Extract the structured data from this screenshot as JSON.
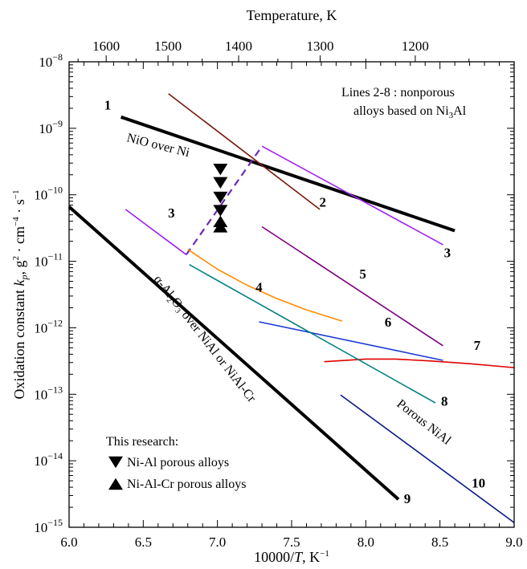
{
  "chart_data": {
    "type": "line",
    "xlabel": "10000/T, K⁻¹",
    "ylabel": "Oxidation constant k_p, g²·cm⁻⁴·s⁻¹",
    "top_axis_label": "Temperature, K",
    "xlim": [
      6.0,
      9.0
    ],
    "ylim_log10": [
      -15,
      -8
    ],
    "y_scale": "log",
    "x_ticks": [
      "6.0",
      "6.5",
      "7.0",
      "7.5",
      "8.0",
      "8.5",
      "9.0"
    ],
    "y_tick_exponents": [
      -15,
      -14,
      -13,
      -12,
      -11,
      -10,
      -9,
      -8
    ],
    "top_ticks": [
      {
        "T": 1600,
        "label": "1600"
      },
      {
        "T": 1500,
        "label": "1500"
      },
      {
        "T": 1400,
        "label": "1400"
      },
      {
        "T": 1300,
        "label": "1300"
      },
      {
        "T": 1200,
        "label": "1200"
      }
    ],
    "series": [
      {
        "id": "1",
        "color": "#000000",
        "width": 4,
        "points": [
          [
            6.35,
            -8.83
          ],
          [
            8.6,
            -10.54
          ]
        ]
      },
      {
        "id": "2",
        "color": "#7a1a0c",
        "width": 1.6,
        "points": [
          [
            6.67,
            -8.48
          ],
          [
            7.69,
            -10.22
          ]
        ]
      },
      {
        "id": "3",
        "color": "#a020f0",
        "width": 1.6,
        "points": [
          [
            6.38,
            -10.22
          ],
          [
            6.79,
            -10.9
          ]
        ]
      },
      {
        "id": "3-dashed",
        "color": "#6a2bb5",
        "width": 2.2,
        "dash": true,
        "points": [
          [
            6.79,
            -10.9
          ],
          [
            7.3,
            -9.27
          ]
        ]
      },
      {
        "id": "3-upper",
        "color": "#a020f0",
        "width": 1.6,
        "points": [
          [
            7.3,
            -9.27
          ],
          [
            8.52,
            -10.75
          ]
        ]
      },
      {
        "id": "4",
        "color": "#ff8c00",
        "width": 1.6,
        "points": [
          [
            6.8,
            -10.82
          ],
          [
            7.0,
            -11.12
          ],
          [
            7.2,
            -11.36
          ],
          [
            7.4,
            -11.56
          ],
          [
            7.6,
            -11.73
          ],
          [
            7.84,
            -11.9
          ]
        ]
      },
      {
        "id": "5",
        "color": "#800080",
        "width": 1.6,
        "points": [
          [
            7.3,
            -10.48
          ],
          [
            8.52,
            -12.27
          ]
        ]
      },
      {
        "id": "6",
        "color": "#1a3ad6",
        "width": 1.6,
        "points": [
          [
            7.28,
            -11.91
          ],
          [
            8.52,
            -12.49
          ]
        ]
      },
      {
        "id": "7",
        "color": "#e00000",
        "width": 1.6,
        "points": [
          [
            7.72,
            -12.51
          ],
          [
            8.0,
            -12.47
          ],
          [
            8.2,
            -12.47
          ],
          [
            8.45,
            -12.5
          ],
          [
            8.7,
            -12.54
          ],
          [
            9.0,
            -12.6
          ]
        ]
      },
      {
        "id": "8",
        "color": "#008080",
        "width": 1.6,
        "points": [
          [
            6.81,
            -11.05
          ],
          [
            8.47,
            -13.13
          ]
        ]
      },
      {
        "id": "9",
        "color": "#000000",
        "width": 4,
        "points": [
          [
            6.0,
            -10.18
          ],
          [
            8.22,
            -14.58
          ]
        ]
      },
      {
        "id": "10",
        "color": "#0a1a8a",
        "width": 1.6,
        "points": [
          [
            7.83,
            -13.01
          ],
          [
            9.0,
            -14.93
          ]
        ]
      }
    ],
    "markers": [
      {
        "type": "down",
        "x": 7.02,
        "y": -9.62
      },
      {
        "type": "down",
        "x": 7.02,
        "y": -9.82
      },
      {
        "type": "down",
        "x": 7.02,
        "y": -10.04
      },
      {
        "type": "down",
        "x": 7.02,
        "y": -10.24
      },
      {
        "type": "up",
        "x": 7.02,
        "y": -10.4
      },
      {
        "type": "up",
        "x": 7.02,
        "y": -10.48
      }
    ],
    "line_labels": [
      {
        "text": "1",
        "x": 6.26,
        "y": -8.72
      },
      {
        "text": "2",
        "x": 7.71,
        "y": -10.18
      },
      {
        "text": "3",
        "x": 6.69,
        "y": -10.34
      },
      {
        "text": "3",
        "x": 8.55,
        "y": -10.94
      },
      {
        "text": "4",
        "x": 7.28,
        "y": -11.46
      },
      {
        "text": "5",
        "x": 7.98,
        "y": -11.26
      },
      {
        "text": "6",
        "x": 8.15,
        "y": -11.98
      },
      {
        "text": "7",
        "x": 8.75,
        "y": -12.33
      },
      {
        "text": "8",
        "x": 8.53,
        "y": -13.17
      },
      {
        "text": "9",
        "x": 8.28,
        "y": -14.64
      },
      {
        "text": "10",
        "x": 8.76,
        "y": -14.4
      }
    ],
    "annotations": {
      "lines_note_1": "Lines 2-8 : nonporous",
      "lines_note_2_pre": "alloys based on Ni",
      "lines_note_2_sub": "3",
      "lines_note_2_post": "Al",
      "nio_label": "NiO over Ni",
      "alumina_label": "α-Al₂O₃ over NiAl or NiAl-Cr",
      "porous_label": "Porous NiAl"
    },
    "legend": {
      "title": "This research:",
      "items": [
        {
          "marker": "down",
          "label": "Ni-Al porous alloys"
        },
        {
          "marker": "up",
          "label": "Ni-Al-Cr porous alloys"
        }
      ]
    }
  }
}
